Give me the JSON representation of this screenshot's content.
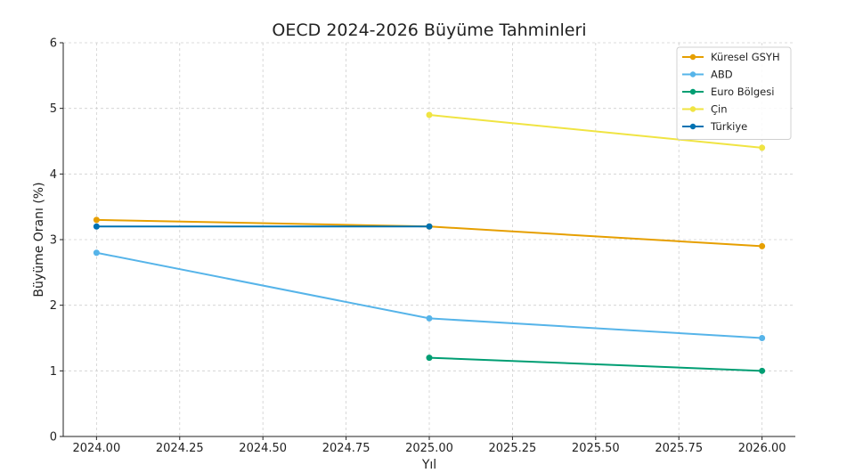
{
  "chart_data": {
    "type": "line",
    "title": "OECD 2024-2026 Büyüme Tahminleri",
    "xlabel": "Yıl",
    "ylabel": "Büyüme Oranı (%)",
    "xlim": [
      2023.9,
      2026.1
    ],
    "ylim": [
      0,
      6
    ],
    "xticks": [
      2024.0,
      2024.25,
      2024.5,
      2024.75,
      2025.0,
      2025.25,
      2025.5,
      2025.75,
      2026.0
    ],
    "xtick_labels": [
      "2024.00",
      "2024.25",
      "2024.50",
      "2024.75",
      "2025.00",
      "2025.25",
      "2025.50",
      "2025.75",
      "2026.00"
    ],
    "yticks": [
      0,
      1,
      2,
      3,
      4,
      5,
      6
    ],
    "ytick_labels": [
      "0",
      "1",
      "2",
      "3",
      "4",
      "5",
      "6"
    ],
    "grid": true,
    "legend_position": "top-right",
    "series": [
      {
        "name": "Küresel GSYH",
        "color": "#E69F00",
        "x": [
          2024,
          2025,
          2026
        ],
        "values": [
          3.3,
          3.2,
          2.9
        ]
      },
      {
        "name": "ABD",
        "color": "#56B4E9",
        "x": [
          2024,
          2025,
          2026
        ],
        "values": [
          2.8,
          1.8,
          1.5
        ]
      },
      {
        "name": "Euro Bölgesi",
        "color": "#009E73",
        "x": [
          2025,
          2026
        ],
        "values": [
          1.2,
          1.0
        ]
      },
      {
        "name": "Çin",
        "color": "#F0E442",
        "x": [
          2025,
          2026
        ],
        "values": [
          4.9,
          4.4
        ]
      },
      {
        "name": "Türkiye",
        "color": "#0072B2",
        "x": [
          2024,
          2025
        ],
        "values": [
          3.2,
          3.2
        ]
      }
    ]
  }
}
